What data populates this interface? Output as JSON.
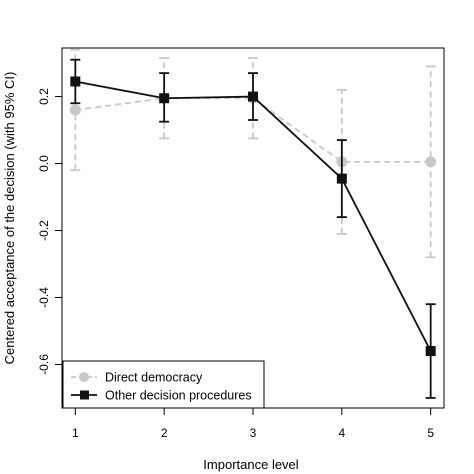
{
  "chart_data": {
    "type": "line",
    "title": "",
    "xlabel": "Importance level",
    "ylabel": "Centered acceptance of the decision (with 95% CI)",
    "x": [
      1,
      2,
      3,
      4,
      5
    ],
    "xticks": [
      "1",
      "2",
      "3",
      "4",
      "5"
    ],
    "yticks": [
      "0.2",
      "0.0",
      "-0.2",
      "-0.4",
      "-0.6"
    ],
    "ytick_values": [
      0.2,
      0.0,
      -0.2,
      -0.4,
      -0.6
    ],
    "xlim": [
      0.85,
      5.15
    ],
    "ylim": [
      -0.73,
      0.345
    ],
    "grid": false,
    "legend_position": "bottom-left",
    "series": [
      {
        "name": "Direct democracy",
        "color": "#c8c8c8",
        "line_style": "dashed",
        "marker": "circle",
        "values": [
          0.16,
          0.195,
          0.195,
          0.005,
          0.005
        ],
        "ci_lower": [
          -0.02,
          0.075,
          0.075,
          -0.21,
          -0.28
        ],
        "ci_upper": [
          0.34,
          0.315,
          0.315,
          0.22,
          0.29
        ]
      },
      {
        "name": "Other decision procedures",
        "color": "#111111",
        "line_style": "solid",
        "marker": "square",
        "values": [
          0.245,
          0.195,
          0.2,
          -0.045,
          -0.56
        ],
        "ci_lower": [
          0.18,
          0.125,
          0.13,
          -0.16,
          -0.7
        ],
        "ci_upper": [
          0.31,
          0.27,
          0.27,
          0.07,
          -0.42
        ]
      }
    ]
  }
}
